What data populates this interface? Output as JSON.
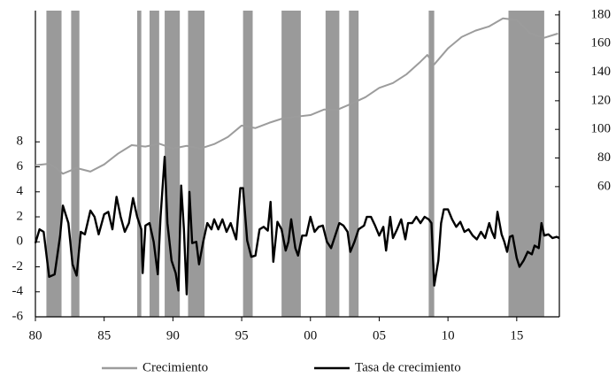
{
  "chart_data": {
    "type": "line",
    "xlim": [
      1980,
      2018.1
    ],
    "xticks": [
      {
        "value": 1980,
        "label": "80"
      },
      {
        "value": 1985,
        "label": "85"
      },
      {
        "value": 1990,
        "label": "90"
      },
      {
        "value": 1995,
        "label": "95"
      },
      {
        "value": 2000,
        "label": "00"
      },
      {
        "value": 2005,
        "label": "05"
      },
      {
        "value": 2010,
        "label": "10"
      },
      {
        "value": 2015,
        "label": "15"
      }
    ],
    "ylim": [
      -6,
      18.5
    ],
    "yticks": [
      -6,
      -4,
      -2,
      0,
      2,
      4,
      6,
      8
    ],
    "y2lim": [
      -31,
      183
    ],
    "y2ticks": [
      60,
      80,
      100,
      120,
      140,
      160,
      180
    ],
    "shaded_periods": [
      [
        1980.8,
        1981.9
      ],
      [
        1982.6,
        1983.2
      ],
      [
        1987.4,
        1987.7
      ],
      [
        1988.3,
        1989.0
      ],
      [
        1989.4,
        1990.5
      ],
      [
        1991.1,
        1992.3
      ],
      [
        1995.1,
        1995.8
      ],
      [
        1997.9,
        1999.3
      ],
      [
        2001.1,
        2002.1
      ],
      [
        2002.8,
        2003.5
      ],
      [
        2008.6,
        2009.0
      ],
      [
        2014.4,
        2017.0
      ]
    ],
    "shade_color": "#9a9a9a",
    "legend": "bottom",
    "series": [
      {
        "name": "Crecimiento",
        "color": "#9c9c9c",
        "axis": "y2",
        "x": [
          1980,
          1981,
          1981.5,
          1982,
          1983,
          1984,
          1985,
          1986,
          1987,
          1988,
          1989,
          1990,
          1991,
          1992,
          1993,
          1994,
          1995,
          1996,
          1997,
          1998,
          1999,
          2000,
          2001,
          2002,
          2003,
          2004,
          2005,
          2006,
          2007,
          2008,
          2008.5,
          2009,
          2010,
          2011,
          2012,
          2013,
          2014,
          2015,
          2016,
          2017,
          2018
        ],
        "values": [
          74.9,
          76,
          73,
          69,
          73,
          70.5,
          75.5,
          83,
          89,
          88,
          90,
          86.6,
          88.5,
          86.6,
          89.7,
          94.7,
          102.7,
          100.9,
          104.6,
          107.7,
          108.9,
          110,
          113.9,
          113.9,
          118,
          122.5,
          129,
          132.4,
          138.6,
          147.3,
          152,
          145.4,
          156.6,
          164.6,
          169,
          172,
          177.6,
          176.4,
          167,
          164,
          167
        ]
      },
      {
        "name": "Tasa de crecimiento",
        "color": "#000000",
        "x": [
          1980.0,
          1980.3,
          1980.6,
          1981.0,
          1981.4,
          1981.8,
          1982.0,
          1982.4,
          1982.7,
          1983.0,
          1983.3,
          1983.6,
          1984.0,
          1984.3,
          1984.6,
          1985.0,
          1985.3,
          1985.6,
          1985.9,
          1986.2,
          1986.5,
          1986.8,
          1987.1,
          1987.4,
          1987.7,
          1987.8,
          1988.0,
          1988.3,
          1988.6,
          1988.9,
          1989.1,
          1989.4,
          1989.6,
          1989.9,
          1990.2,
          1990.4,
          1990.6,
          1990.8,
          1991.0,
          1991.2,
          1991.4,
          1991.7,
          1991.9,
          1992.2,
          1992.5,
          1992.8,
          1993.0,
          1993.3,
          1993.6,
          1993.9,
          1994.2,
          1994.6,
          1994.9,
          1995.1,
          1995.4,
          1995.7,
          1996.0,
          1996.3,
          1996.6,
          1996.9,
          1997.1,
          1997.3,
          1997.6,
          1997.9,
          1998.2,
          1998.4,
          1998.6,
          1998.9,
          1999.1,
          1999.4,
          1999.7,
          2000.0,
          2000.3,
          2000.6,
          2000.9,
          2001.2,
          2001.5,
          2001.8,
          2002.1,
          2002.4,
          2002.7,
          2002.9,
          2003.2,
          2003.5,
          2003.9,
          2004.1,
          2004.4,
          2004.7,
          2005.0,
          2005.3,
          2005.5,
          2005.8,
          2006.0,
          2006.3,
          2006.6,
          2006.9,
          2007.1,
          2007.4,
          2007.7,
          2008.0,
          2008.3,
          2008.6,
          2008.8,
          2009.0,
          2009.3,
          2009.5,
          2009.7,
          2010.0,
          2010.3,
          2010.6,
          2010.9,
          2011.2,
          2011.5,
          2011.8,
          2012.1,
          2012.4,
          2012.7,
          2013.0,
          2013.2,
          2013.4,
          2013.6,
          2013.9,
          2014.1,
          2014.3,
          2014.5,
          2014.7,
          2015.0,
          2015.2,
          2015.5,
          2015.8,
          2016.1,
          2016.3,
          2016.6,
          2016.8,
          2017.0,
          2017.3,
          2017.6,
          2017.9,
          2018.1
        ],
        "values": [
          -0.1,
          1.0,
          0.8,
          -2.8,
          -2.6,
          0.5,
          2.9,
          1.5,
          -1.8,
          -2.7,
          0.8,
          0.6,
          2.5,
          2.0,
          0.6,
          2.2,
          2.4,
          1.0,
          3.6,
          2.0,
          0.8,
          1.5,
          3.5,
          2.0,
          1.0,
          -2.5,
          1.3,
          1.5,
          0.0,
          -2.6,
          2.0,
          6.8,
          1.5,
          -1.5,
          -2.5,
          -3.9,
          4.5,
          1.0,
          -4.2,
          4.0,
          -0.1,
          0.0,
          -1.8,
          0.0,
          1.5,
          1.0,
          1.8,
          1.0,
          1.8,
          0.8,
          1.5,
          0.2,
          4.3,
          4.3,
          0.1,
          -1.2,
          -1.1,
          1.0,
          1.2,
          0.9,
          3.2,
          -1.6,
          1.6,
          1.0,
          -0.7,
          0.0,
          1.8,
          -0.5,
          -1.1,
          0.5,
          0.5,
          2.0,
          0.8,
          1.2,
          1.3,
          0.0,
          -0.5,
          0.5,
          1.5,
          1.3,
          0.8,
          -0.8,
          0.0,
          1.0,
          1.3,
          2.0,
          2.0,
          1.3,
          0.5,
          1.2,
          -0.7,
          2.0,
          0.3,
          1.0,
          1.8,
          0.2,
          1.5,
          1.5,
          2.0,
          1.5,
          2.0,
          1.8,
          1.5,
          -3.5,
          -1.5,
          1.5,
          2.6,
          2.6,
          1.8,
          1.2,
          1.6,
          0.8,
          1.0,
          0.5,
          0.2,
          0.8,
          0.3,
          1.5,
          0.8,
          0.3,
          2.4,
          0.6,
          0.0,
          -0.8,
          0.4,
          0.5,
          -1.3,
          -2.0,
          -1.5,
          -0.8,
          -1.0,
          -0.3,
          -0.5,
          1.5,
          0.5,
          0.6,
          0.3,
          0.4,
          0.3
        ]
      }
    ]
  }
}
